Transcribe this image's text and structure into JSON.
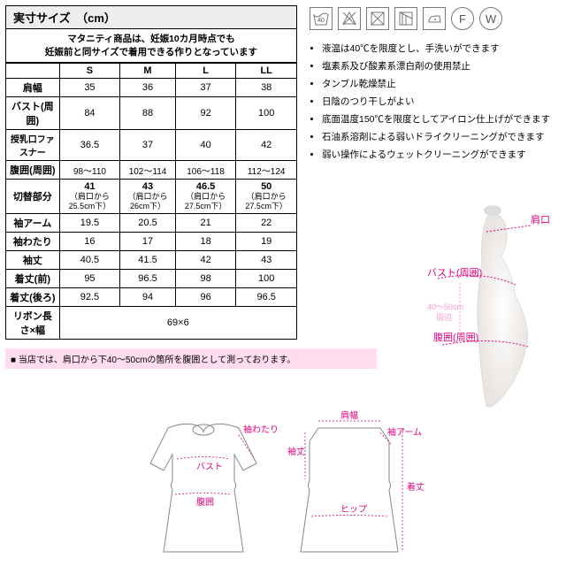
{
  "title": "実寸サイズ　（cm）",
  "subtitle1": "マタニティ商品は、妊娠10カ月時点でも",
  "subtitle2": "妊娠前と同サイズで着用できる作りとなっています",
  "sizes": [
    "S",
    "M",
    "L",
    "LL"
  ],
  "rows": [
    {
      "h": "肩幅",
      "v": [
        "35",
        "36",
        "37",
        "38"
      ]
    },
    {
      "h": "バスト(周囲)",
      "v": [
        "84",
        "88",
        "92",
        "100"
      ]
    },
    {
      "h": "授乳口ファスナー",
      "v": [
        "36.5",
        "37",
        "40",
        "42"
      ]
    },
    {
      "h": "腹囲(周囲)",
      "v": [
        "98～110",
        "102～114",
        "106～118",
        "112～124"
      ],
      "small": true
    },
    {
      "h": "切替部分",
      "v": [
        "41",
        "43",
        "46.5",
        "50"
      ],
      "sub": [
        "（肩口から25.5cm下）",
        "（肩口から26cm下）",
        "（肩口から27.5cm下）",
        "（肩口から27.5cm下）"
      ]
    },
    {
      "h": "袖アーム",
      "v": [
        "19.5",
        "20.5",
        "21",
        "22"
      ]
    },
    {
      "h": "袖わたり",
      "v": [
        "16",
        "17",
        "18",
        "19"
      ]
    },
    {
      "h": "袖丈",
      "v": [
        "40.5",
        "41.5",
        "42",
        "43"
      ]
    },
    {
      "h": "着丈(前)",
      "v": [
        "95",
        "96.5",
        "98",
        "100"
      ]
    },
    {
      "h": "着丈(後ろ)",
      "v": [
        "92.5",
        "94",
        "96",
        "96.5"
      ]
    }
  ],
  "ribbon": {
    "h": "リボン長さ×幅",
    "v": "69×6"
  },
  "note": "■ 当店では、肩口から下40～50cmの箇所を腹囲として測っております。",
  "care": [
    "液温は40℃を限度とし、手洗いができます",
    "塩素系及び酸素系漂白剤の使用禁止",
    "タンブル乾燥禁止",
    "日陰のつり干しがよい",
    "底面温度150℃を限度としてアイロン仕上げができます",
    "石油系溶剤による弱いドライクリーニングができます",
    "弱い操作によるウェットクリーニングができます"
  ],
  "icons": [
    "40",
    "△×",
    "⊠",
    "⊡",
    "◡",
    "F",
    "W"
  ],
  "mlabels": {
    "a": "肩口",
    "b": "バスト(周囲)",
    "c": "腹囲(周囲)",
    "d": "40～50cm\n周辺"
  },
  "dlabels": {
    "a": "袖わたり",
    "b": "バスト",
    "c": "腹囲",
    "d": "肩幅",
    "e": "袖丈",
    "f": "袖アーム",
    "g": "着丈",
    "h": "ヒップ"
  }
}
